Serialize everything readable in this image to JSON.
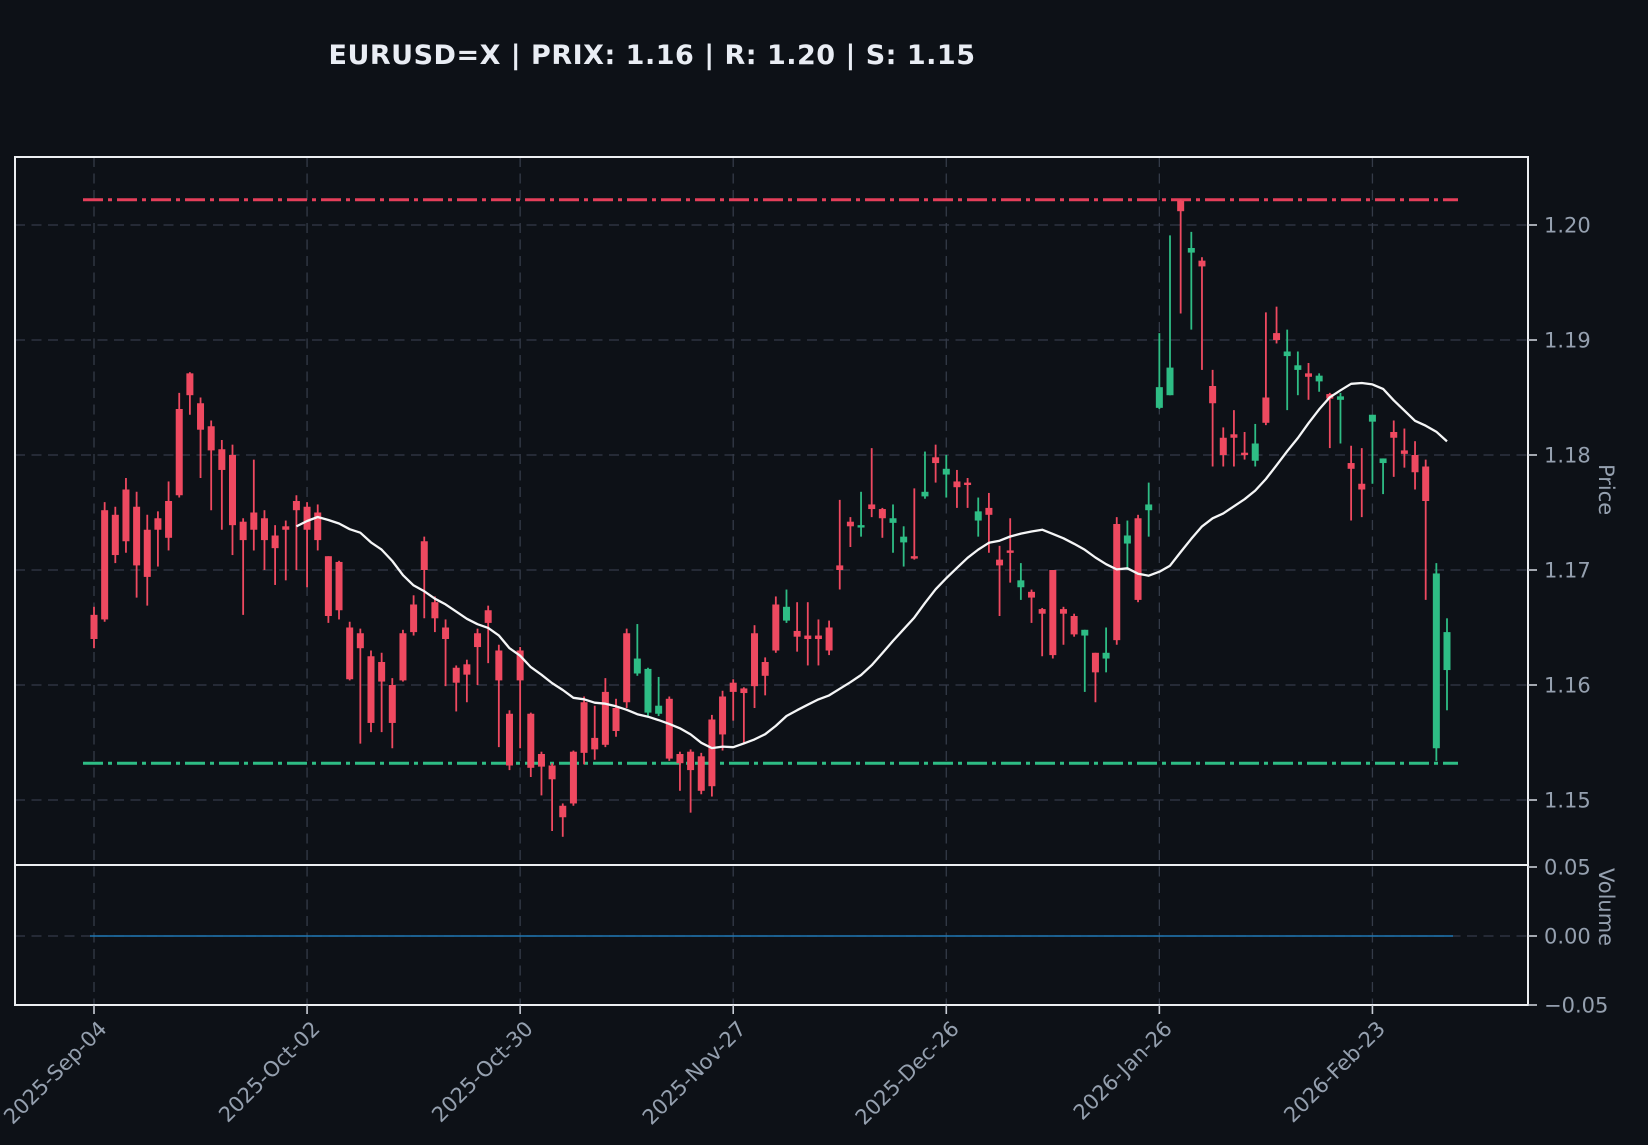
{
  "title": "EURUSD=X | PRIX: 1.16 | R: 1.20 | S: 1.15",
  "colors": {
    "background": "#0d1117",
    "up": "#2ebd85",
    "down": "#ef4960",
    "resistance": "#e43f5a",
    "support": "#2ebd85",
    "ma_line": "#f5f6f7",
    "volume_line": "#1f77b4",
    "grid": "#343b48",
    "border": "#eceef1",
    "tick_text": "#95a0af",
    "title_text": "#e9edf4"
  },
  "chart_data": {
    "type": "candlestick",
    "symbol": "EURUSD=X",
    "title": "EURUSD=X | PRIX: 1.16 | R: 1.20 | S: 1.15",
    "current_price": 1.16,
    "resistance_label": "R: 1.20",
    "support_label": "S: 1.15",
    "grid": true,
    "x_ticks": [
      {
        "index": 0,
        "label": "2025-Sep-04"
      },
      {
        "index": 20,
        "label": "2025-Oct-02"
      },
      {
        "index": 40,
        "label": "2025-Oct-30"
      },
      {
        "index": 60,
        "label": "2025-Nov-27"
      },
      {
        "index": 80,
        "label": "2025-Dec-26"
      },
      {
        "index": 100,
        "label": "2026-Jan-26"
      },
      {
        "index": 120,
        "label": "2026-Feb-23"
      }
    ],
    "price_panel": {
      "ylabel": "Price",
      "ylim": [
        1.1443,
        1.2059
      ],
      "y_ticks": [
        {
          "value": 1.2,
          "label": "1.20"
        },
        {
          "value": 1.19,
          "label": "1.19"
        },
        {
          "value": 1.18,
          "label": "1.18"
        },
        {
          "value": 1.17,
          "label": "1.17"
        },
        {
          "value": 1.16,
          "label": "1.16"
        },
        {
          "value": 1.15,
          "label": "1.15"
        }
      ],
      "resistance": 1.2022,
      "support": 1.1532,
      "ma_window": 20,
      "candles": {
        "open": [
          1.1661,
          1.1752,
          1.1748,
          1.177,
          1.1755,
          1.1735,
          1.1745,
          1.176,
          1.184,
          1.1871,
          1.1845,
          1.1825,
          1.1805,
          1.18,
          1.1742,
          1.175,
          1.1745,
          1.173,
          1.1738,
          1.176,
          1.1755,
          1.175,
          1.1712,
          1.1707,
          1.165,
          1.1645,
          1.1625,
          1.162,
          1.16,
          1.1645,
          1.167,
          1.1725,
          1.1672,
          1.165,
          1.1615,
          1.1618,
          1.1645,
          1.1665,
          1.163,
          1.1575,
          1.163,
          1.1575,
          1.154,
          1.153,
          1.1495,
          1.1542,
          1.1585,
          1.1554,
          1.1594,
          1.158,
          1.1645,
          1.161,
          1.1576,
          1.1575,
          1.1588,
          1.154,
          1.1542,
          1.1538,
          1.157,
          1.159,
          1.1602,
          1.1597,
          1.1645,
          1.162,
          1.167,
          1.1656,
          1.1647,
          1.1643,
          1.1643,
          1.165,
          1.1704,
          1.1742,
          1.1737,
          1.1757,
          1.1753,
          1.1741,
          1.1724,
          1.1712,
          1.1764,
          1.1798,
          1.1783,
          1.1777,
          1.1776,
          1.1743,
          1.1754,
          1.1709,
          1.1717,
          1.1685,
          1.1681,
          1.1666,
          1.17,
          1.1666,
          1.166,
          1.1643,
          1.1628,
          1.1623,
          1.174,
          1.1723,
          1.1745,
          1.1752,
          1.1841,
          1.1852,
          1.2021,
          1.1976,
          1.1969,
          1.186,
          1.1815,
          1.1818,
          1.1802,
          1.1795,
          1.185,
          1.1906,
          1.1886,
          1.1874,
          1.1871,
          1.1864,
          1.1853,
          1.1848,
          1.1793,
          1.1775,
          1.1829,
          1.1793,
          1.182,
          1.1804,
          1.18,
          1.179,
          1.1545,
          1.1613
        ],
        "high": [
          1.1668,
          1.1759,
          1.1755,
          1.178,
          1.1768,
          1.1748,
          1.1751,
          1.1777,
          1.1854,
          1.1872,
          1.185,
          1.183,
          1.1813,
          1.1809,
          1.1745,
          1.1796,
          1.1752,
          1.1739,
          1.1743,
          1.1765,
          1.1759,
          1.1757,
          1.1712,
          1.1708,
          1.1655,
          1.1649,
          1.163,
          1.1628,
          1.1606,
          1.1648,
          1.1678,
          1.1729,
          1.1677,
          1.1657,
          1.1617,
          1.1622,
          1.1649,
          1.1669,
          1.1635,
          1.1578,
          1.1633,
          1.1576,
          1.1542,
          1.1532,
          1.1497,
          1.1543,
          1.159,
          1.1582,
          1.1606,
          1.1588,
          1.1649,
          1.1653,
          1.1615,
          1.1607,
          1.159,
          1.1542,
          1.1544,
          1.1541,
          1.1574,
          1.1595,
          1.1605,
          1.1598,
          1.1652,
          1.1624,
          1.1677,
          1.1683,
          1.1672,
          1.1672,
          1.1657,
          1.1656,
          1.1761,
          1.1746,
          1.1768,
          1.1806,
          1.1754,
          1.1757,
          1.1738,
          1.1771,
          1.1803,
          1.1809,
          1.18,
          1.1787,
          1.178,
          1.1763,
          1.1767,
          1.1721,
          1.1745,
          1.1706,
          1.1683,
          1.1667,
          1.17,
          1.1668,
          1.1662,
          1.1648,
          1.1628,
          1.165,
          1.1746,
          1.1743,
          1.1748,
          1.1776,
          1.1906,
          1.1991,
          1.2022,
          1.1994,
          1.1972,
          1.1874,
          1.1824,
          1.1839,
          1.182,
          1.1827,
          1.1924,
          1.1929,
          1.1909,
          1.189,
          1.188,
          1.1871,
          1.1854,
          1.1854,
          1.1808,
          1.1806,
          1.1835,
          1.1797,
          1.183,
          1.1823,
          1.1812,
          1.1796,
          1.1706,
          1.1658
        ],
        "low": [
          1.1632,
          1.1655,
          1.1706,
          1.1715,
          1.1676,
          1.1669,
          1.1703,
          1.1717,
          1.1763,
          1.1835,
          1.178,
          1.1752,
          1.1735,
          1.1713,
          1.1661,
          1.1717,
          1.17,
          1.1687,
          1.1691,
          1.17,
          1.1685,
          1.1717,
          1.1654,
          1.1657,
          1.1604,
          1.1549,
          1.1559,
          1.1559,
          1.1545,
          1.1603,
          1.1643,
          1.1658,
          1.1646,
          1.1599,
          1.1577,
          1.1585,
          1.16,
          1.1619,
          1.1546,
          1.1526,
          1.1545,
          1.152,
          1.1504,
          1.1473,
          1.1468,
          1.1495,
          1.1531,
          1.1535,
          1.1546,
          1.1555,
          1.158,
          1.1608,
          1.1573,
          1.1573,
          1.1534,
          1.1508,
          1.1489,
          1.1505,
          1.1503,
          1.1543,
          1.1569,
          1.155,
          1.158,
          1.1591,
          1.1628,
          1.1654,
          1.1629,
          1.1617,
          1.1617,
          1.1626,
          1.1683,
          1.172,
          1.1729,
          1.1746,
          1.1728,
          1.1715,
          1.1703,
          1.1709,
          1.1762,
          1.1776,
          1.1763,
          1.1754,
          1.1754,
          1.1729,
          1.1715,
          1.166,
          1.1689,
          1.1674,
          1.1654,
          1.1625,
          1.1623,
          1.1635,
          1.1642,
          1.1594,
          1.1585,
          1.1611,
          1.1635,
          1.17,
          1.1672,
          1.1729,
          1.184,
          1.1852,
          1.1923,
          1.1909,
          1.1874,
          1.179,
          1.179,
          1.179,
          1.1796,
          1.179,
          1.1826,
          1.1897,
          1.1839,
          1.1852,
          1.1848,
          1.1855,
          1.1806,
          1.181,
          1.1743,
          1.1746,
          1.1775,
          1.1766,
          1.1781,
          1.1789,
          1.177,
          1.1674,
          1.1534,
          1.1578
        ],
        "close": [
          1.164,
          1.1657,
          1.1713,
          1.1725,
          1.1704,
          1.1694,
          1.1735,
          1.1728,
          1.1765,
          1.1852,
          1.1822,
          1.1804,
          1.1787,
          1.1739,
          1.1726,
          1.1735,
          1.1726,
          1.1719,
          1.1735,
          1.1752,
          1.1735,
          1.1726,
          1.166,
          1.1665,
          1.1605,
          1.1632,
          1.1567,
          1.1603,
          1.1567,
          1.1604,
          1.1646,
          1.17,
          1.1658,
          1.164,
          1.1602,
          1.1609,
          1.1633,
          1.1654,
          1.1604,
          1.153,
          1.1604,
          1.1528,
          1.1529,
          1.1518,
          1.1485,
          1.1497,
          1.1541,
          1.1544,
          1.1548,
          1.156,
          1.1585,
          1.1623,
          1.1614,
          1.1582,
          1.1536,
          1.1532,
          1.1526,
          1.1508,
          1.1512,
          1.1557,
          1.1594,
          1.1593,
          1.1599,
          1.1608,
          1.163,
          1.1668,
          1.1642,
          1.164,
          1.164,
          1.163,
          1.17,
          1.1738,
          1.1739,
          1.1753,
          1.1745,
          1.1745,
          1.1729,
          1.171,
          1.1768,
          1.1793,
          1.1788,
          1.1772,
          1.1774,
          1.1751,
          1.1748,
          1.1704,
          1.1715,
          1.1691,
          1.1676,
          1.1662,
          1.1626,
          1.1662,
          1.1644,
          1.1648,
          1.1611,
          1.1628,
          1.1639,
          1.173,
          1.1674,
          1.1757,
          1.1859,
          1.1876,
          1.2012,
          1.198,
          1.1964,
          1.1845,
          1.18,
          1.1815,
          1.18,
          1.181,
          1.1828,
          1.19,
          1.189,
          1.1878,
          1.1868,
          1.1869,
          1.1849,
          1.1851,
          1.1788,
          1.177,
          1.1835,
          1.1797,
          1.1815,
          1.1801,
          1.1785,
          1.176,
          1.1697,
          1.1646
        ]
      }
    },
    "volume_panel": {
      "ylabel": "Volume",
      "ylim": [
        -0.05,
        0.05
      ],
      "y_ticks": [
        {
          "value": 0.05,
          "label": "0.05"
        },
        {
          "value": 0.0,
          "label": "0.00"
        },
        {
          "value": -0.05,
          "label": "−0.05"
        }
      ],
      "volume_value": 0
    }
  }
}
